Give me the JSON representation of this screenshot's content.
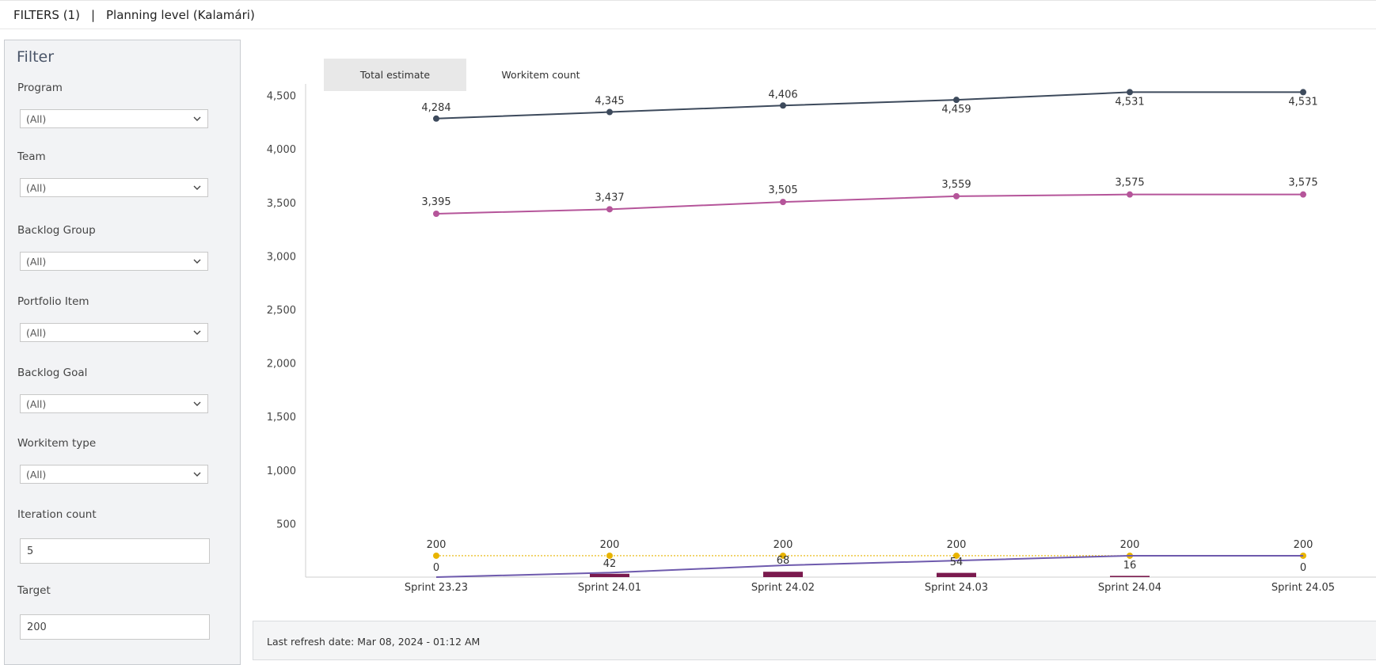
{
  "header": {
    "filters_label": "FILTERS (1)",
    "separator": "|",
    "planning_level": "Planning level  (Kalamári)"
  },
  "filter_panel": {
    "title": "Filter",
    "program": {
      "label": "Program",
      "value": "(All)"
    },
    "team": {
      "label": "Team",
      "value": "(All)"
    },
    "backlog_group": {
      "label": "Backlog Group",
      "value": "(All)"
    },
    "portfolio_item": {
      "label": "Portfolio Item",
      "value": "(All)"
    },
    "backlog_goal": {
      "label": "Backlog Goal",
      "value": "(All)"
    },
    "workitem_type": {
      "label": "Workitem type",
      "value": "(All)"
    },
    "iteration_count": {
      "label": "Iteration count",
      "value": "5"
    },
    "target": {
      "label": "Target",
      "value": "200"
    }
  },
  "tabs": [
    {
      "label": "Total estimate",
      "active": true
    },
    {
      "label": "Workitem count",
      "active": false
    }
  ],
  "footer": {
    "last_refresh": "Last refresh date: Mar 08, 2024 - 01:12 AM"
  },
  "colors": {
    "total_line": "#3d4a5c",
    "pink_line": "#b5559a",
    "target_line": "#e8b400",
    "purple_line": "#6e5aad",
    "bars": "#7a1a4e"
  },
  "chart_data": {
    "type": "line",
    "categories": [
      "Sprint 23.23",
      "Sprint 24.01",
      "Sprint 24.02",
      "Sprint 24.03",
      "Sprint 24.04",
      "Sprint 24.05"
    ],
    "ylim": [
      0,
      4600
    ],
    "yticks": [
      "500",
      "1,000",
      "1,500",
      "2,000",
      "2,500",
      "3,000",
      "3,500",
      "4,000",
      "4,500"
    ],
    "ytick_values": [
      500,
      1000,
      1500,
      2000,
      2500,
      3000,
      3500,
      4000,
      4500
    ],
    "series": [
      {
        "key": "total",
        "values": [
          4284,
          4345,
          4406,
          4459,
          4531,
          4531
        ],
        "labels": [
          "4,284",
          "4,345",
          "4,406",
          "4,459",
          "4,531",
          "4,531"
        ],
        "style": "solid"
      },
      {
        "key": "pink",
        "values": [
          3395,
          3437,
          3505,
          3559,
          3575,
          3575
        ],
        "labels": [
          "3,395",
          "3,437",
          "3,505",
          "3,559",
          "3,575",
          "3,575"
        ],
        "style": "solid"
      },
      {
        "key": "target",
        "values": [
          200,
          200,
          200,
          200,
          200,
          200
        ],
        "labels": [
          "200",
          "200",
          "200",
          "200",
          "200",
          "200"
        ],
        "style": "dotted"
      },
      {
        "key": "purple",
        "values": [
          0,
          42,
          110,
          154,
          200,
          200
        ],
        "style": "solid"
      }
    ],
    "bars": {
      "values": [
        0,
        42,
        68,
        54,
        16,
        0
      ],
      "labels": [
        "0",
        "42",
        "68",
        "54",
        "16",
        "0"
      ]
    },
    "grid": false
  }
}
